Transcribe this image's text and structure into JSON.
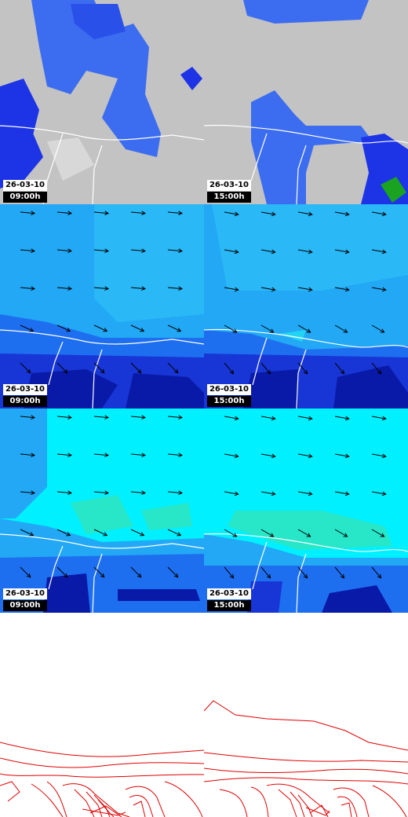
{
  "colors": {
    "no_data": "#c3c3c3",
    "precip_light": "#3c6cf0",
    "precip_med": "#1d33e6",
    "precip_heavy": "#1aa320",
    "wind_deep": "#0a1aa8",
    "wind_dark": "#1836d6",
    "wind_mid": "#1e6ff0",
    "wind_light": "#22a8f4",
    "wind_cyan": "#00f0ff",
    "wind_aqua": "#28e6c8",
    "border": "#ffffff",
    "arrow": "#000000",
    "contour": "#e00000"
  },
  "rows": [
    {
      "id": "precipitation",
      "panels": [
        {
          "date": "26-03-10",
          "time": "09:00h"
        },
        {
          "date": "26-03-10",
          "time": "15:00h"
        }
      ]
    },
    {
      "id": "wind-low",
      "panels": [
        {
          "date": "26-03-10",
          "time": "09:00h"
        },
        {
          "date": "26-03-10",
          "time": "15:00h"
        }
      ]
    },
    {
      "id": "wind-high",
      "panels": [
        {
          "date": "26-03-10",
          "time": "09:00h"
        },
        {
          "date": "26-03-10",
          "time": "15:00h"
        }
      ]
    },
    {
      "id": "pressure-contours",
      "panels": [
        {},
        {}
      ]
    }
  ]
}
